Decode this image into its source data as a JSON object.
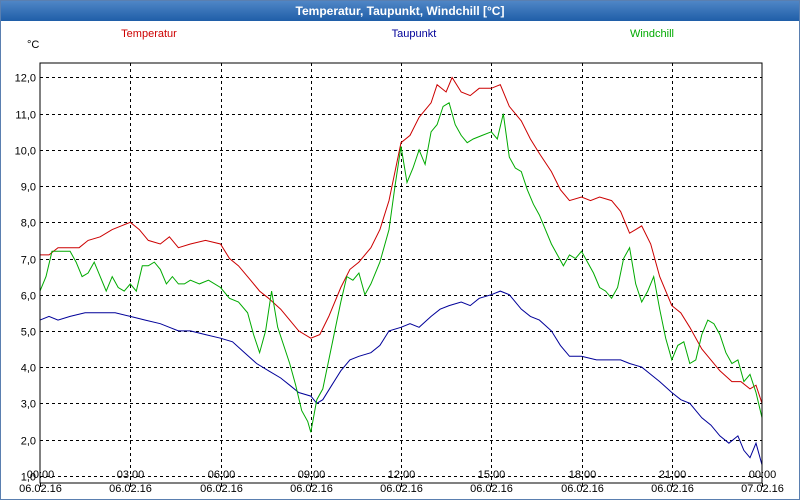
{
  "window": {
    "title": "Temperatur, Taupunkt, Windchill [°C]"
  },
  "chart_data": {
    "type": "line",
    "title": "Temperatur, Taupunkt, Windchill [°C]",
    "ylabel": "°C",
    "ylim": [
      0.8,
      12.4
    ],
    "yticks": [
      1,
      2,
      3,
      4,
      5,
      6,
      7,
      8,
      9,
      10,
      11,
      12
    ],
    "ytick_labels": [
      "1,0",
      "2,0",
      "3,0",
      "4,0",
      "5,0",
      "6,0",
      "7,0",
      "8,0",
      "9,0",
      "10,0",
      "11,0",
      "12,0"
    ],
    "xlim": [
      0,
      24
    ],
    "xticks": [
      0,
      3,
      6,
      9,
      12,
      15,
      18,
      21,
      24
    ],
    "xtick_labels": [
      {
        "time": "00:00",
        "date": "06.02.16"
      },
      {
        "time": "03:00",
        "date": "06.02.16"
      },
      {
        "time": "06:00",
        "date": "06.02.16"
      },
      {
        "time": "09:00",
        "date": "06.02.16"
      },
      {
        "time": "12:00",
        "date": "06.02.16"
      },
      {
        "time": "15:00",
        "date": "06.02.16"
      },
      {
        "time": "18:00",
        "date": "06.02.16"
      },
      {
        "time": "21:00",
        "date": "06.02.16"
      },
      {
        "time": "00:00",
        "date": "07.02.16"
      }
    ],
    "grid": true,
    "series": [
      {
        "name": "Temperatur",
        "color": "#cc0000",
        "points": [
          [
            0,
            7.1
          ],
          [
            0.3,
            7.1
          ],
          [
            0.6,
            7.3
          ],
          [
            1,
            7.3
          ],
          [
            1.3,
            7.3
          ],
          [
            1.6,
            7.5
          ],
          [
            2,
            7.6
          ],
          [
            2.4,
            7.8
          ],
          [
            2.7,
            7.9
          ],
          [
            3,
            8.0
          ],
          [
            3.3,
            7.8
          ],
          [
            3.6,
            7.5
          ],
          [
            4,
            7.4
          ],
          [
            4.3,
            7.6
          ],
          [
            4.6,
            7.3
          ],
          [
            5,
            7.4
          ],
          [
            5.5,
            7.5
          ],
          [
            6,
            7.4
          ],
          [
            6.3,
            7.0
          ],
          [
            6.6,
            6.8
          ],
          [
            7,
            6.4
          ],
          [
            7.3,
            6.1
          ],
          [
            7.6,
            5.9
          ],
          [
            8,
            5.6
          ],
          [
            8.3,
            5.3
          ],
          [
            8.6,
            5.0
          ],
          [
            9,
            4.8
          ],
          [
            9.3,
            4.9
          ],
          [
            9.6,
            5.4
          ],
          [
            10,
            6.2
          ],
          [
            10.3,
            6.7
          ],
          [
            10.6,
            6.9
          ],
          [
            11,
            7.3
          ],
          [
            11.3,
            7.8
          ],
          [
            11.6,
            8.6
          ],
          [
            12,
            10.2
          ],
          [
            12.3,
            10.4
          ],
          [
            12.6,
            10.9
          ],
          [
            13,
            11.3
          ],
          [
            13.2,
            11.8
          ],
          [
            13.5,
            11.6
          ],
          [
            13.7,
            12.0
          ],
          [
            14,
            11.6
          ],
          [
            14.3,
            11.5
          ],
          [
            14.6,
            11.7
          ],
          [
            15,
            11.7
          ],
          [
            15.3,
            11.8
          ],
          [
            15.6,
            11.2
          ],
          [
            16,
            10.8
          ],
          [
            16.3,
            10.3
          ],
          [
            16.6,
            9.9
          ],
          [
            17,
            9.4
          ],
          [
            17.3,
            8.9
          ],
          [
            17.6,
            8.6
          ],
          [
            18,
            8.7
          ],
          [
            18.3,
            8.6
          ],
          [
            18.6,
            8.7
          ],
          [
            19,
            8.6
          ],
          [
            19.3,
            8.3
          ],
          [
            19.6,
            7.7
          ],
          [
            19.8,
            7.8
          ],
          [
            20,
            7.9
          ],
          [
            20.3,
            7.4
          ],
          [
            20.6,
            6.5
          ],
          [
            21,
            5.7
          ],
          [
            21.3,
            5.5
          ],
          [
            21.6,
            5.1
          ],
          [
            22,
            4.5
          ],
          [
            22.3,
            4.2
          ],
          [
            22.6,
            3.9
          ],
          [
            23,
            3.6
          ],
          [
            23.3,
            3.6
          ],
          [
            23.6,
            3.4
          ],
          [
            23.8,
            3.5
          ],
          [
            24,
            3.0
          ]
        ]
      },
      {
        "name": "Taupunkt",
        "color": "#000099",
        "points": [
          [
            0,
            5.3
          ],
          [
            0.3,
            5.4
          ],
          [
            0.6,
            5.3
          ],
          [
            1,
            5.4
          ],
          [
            1.5,
            5.5
          ],
          [
            2,
            5.5
          ],
          [
            2.5,
            5.5
          ],
          [
            3,
            5.4
          ],
          [
            3.5,
            5.3
          ],
          [
            4,
            5.2
          ],
          [
            4.3,
            5.1
          ],
          [
            4.6,
            5.0
          ],
          [
            5,
            5.0
          ],
          [
            5.5,
            4.9
          ],
          [
            6,
            4.8
          ],
          [
            6.4,
            4.7
          ],
          [
            6.8,
            4.4
          ],
          [
            7.2,
            4.1
          ],
          [
            7.6,
            3.9
          ],
          [
            8,
            3.7
          ],
          [
            8.3,
            3.5
          ],
          [
            8.6,
            3.3
          ],
          [
            9,
            3.2
          ],
          [
            9.2,
            3.0
          ],
          [
            9.4,
            3.1
          ],
          [
            9.7,
            3.5
          ],
          [
            10,
            3.9
          ],
          [
            10.3,
            4.2
          ],
          [
            10.6,
            4.3
          ],
          [
            11,
            4.4
          ],
          [
            11.3,
            4.6
          ],
          [
            11.6,
            5.0
          ],
          [
            12,
            5.1
          ],
          [
            12.3,
            5.2
          ],
          [
            12.6,
            5.1
          ],
          [
            13,
            5.4
          ],
          [
            13.3,
            5.6
          ],
          [
            13.6,
            5.7
          ],
          [
            14,
            5.8
          ],
          [
            14.3,
            5.7
          ],
          [
            14.6,
            5.9
          ],
          [
            15,
            6.0
          ],
          [
            15.3,
            6.1
          ],
          [
            15.6,
            6.0
          ],
          [
            16,
            5.6
          ],
          [
            16.3,
            5.4
          ],
          [
            16.6,
            5.3
          ],
          [
            17,
            5.0
          ],
          [
            17.3,
            4.6
          ],
          [
            17.6,
            4.3
          ],
          [
            18,
            4.3
          ],
          [
            18.5,
            4.2
          ],
          [
            19,
            4.2
          ],
          [
            19.3,
            4.2
          ],
          [
            19.6,
            4.1
          ],
          [
            20,
            4.0
          ],
          [
            20.3,
            3.8
          ],
          [
            20.6,
            3.6
          ],
          [
            21,
            3.3
          ],
          [
            21.3,
            3.1
          ],
          [
            21.6,
            3.0
          ],
          [
            22,
            2.6
          ],
          [
            22.3,
            2.4
          ],
          [
            22.6,
            2.1
          ],
          [
            22.9,
            1.9
          ],
          [
            23.2,
            2.1
          ],
          [
            23.4,
            1.7
          ],
          [
            23.6,
            1.5
          ],
          [
            23.8,
            1.9
          ],
          [
            24,
            1.3
          ]
        ]
      },
      {
        "name": "Windchill",
        "color": "#00aa00",
        "points": [
          [
            0,
            6.1
          ],
          [
            0.2,
            6.5
          ],
          [
            0.4,
            7.2
          ],
          [
            0.7,
            7.2
          ],
          [
            1,
            7.2
          ],
          [
            1.2,
            6.9
          ],
          [
            1.4,
            6.5
          ],
          [
            1.6,
            6.6
          ],
          [
            1.8,
            6.9
          ],
          [
            2,
            6.5
          ],
          [
            2.2,
            6.1
          ],
          [
            2.4,
            6.5
          ],
          [
            2.6,
            6.2
          ],
          [
            2.8,
            6.1
          ],
          [
            3,
            6.3
          ],
          [
            3.2,
            6.1
          ],
          [
            3.4,
            6.8
          ],
          [
            3.6,
            6.8
          ],
          [
            3.8,
            6.9
          ],
          [
            4,
            6.7
          ],
          [
            4.2,
            6.3
          ],
          [
            4.4,
            6.5
          ],
          [
            4.6,
            6.3
          ],
          [
            4.8,
            6.3
          ],
          [
            5,
            6.4
          ],
          [
            5.3,
            6.3
          ],
          [
            5.6,
            6.4
          ],
          [
            6,
            6.2
          ],
          [
            6.3,
            5.9
          ],
          [
            6.6,
            5.8
          ],
          [
            6.9,
            5.5
          ],
          [
            7.1,
            4.9
          ],
          [
            7.3,
            4.4
          ],
          [
            7.5,
            5.0
          ],
          [
            7.7,
            6.1
          ],
          [
            7.9,
            5.1
          ],
          [
            8.1,
            4.6
          ],
          [
            8.3,
            4.1
          ],
          [
            8.5,
            3.5
          ],
          [
            8.7,
            2.8
          ],
          [
            8.9,
            2.5
          ],
          [
            9,
            2.2
          ],
          [
            9.2,
            3.1
          ],
          [
            9.4,
            3.4
          ],
          [
            9.6,
            4.2
          ],
          [
            9.8,
            5.0
          ],
          [
            10,
            5.8
          ],
          [
            10.2,
            6.5
          ],
          [
            10.4,
            6.4
          ],
          [
            10.6,
            6.6
          ],
          [
            10.8,
            6.0
          ],
          [
            11,
            6.3
          ],
          [
            11.3,
            6.9
          ],
          [
            11.6,
            7.8
          ],
          [
            11.8,
            9.0
          ],
          [
            12,
            10.1
          ],
          [
            12.2,
            9.1
          ],
          [
            12.4,
            9.5
          ],
          [
            12.6,
            10.0
          ],
          [
            12.8,
            9.6
          ],
          [
            13,
            10.5
          ],
          [
            13.2,
            10.7
          ],
          [
            13.4,
            11.2
          ],
          [
            13.6,
            11.3
          ],
          [
            13.8,
            10.7
          ],
          [
            14,
            10.4
          ],
          [
            14.2,
            10.2
          ],
          [
            14.4,
            10.3
          ],
          [
            14.7,
            10.4
          ],
          [
            15,
            10.5
          ],
          [
            15.2,
            10.3
          ],
          [
            15.4,
            11.0
          ],
          [
            15.6,
            9.8
          ],
          [
            15.8,
            9.5
          ],
          [
            16,
            9.4
          ],
          [
            16.2,
            8.9
          ],
          [
            16.4,
            8.5
          ],
          [
            16.6,
            8.2
          ],
          [
            16.8,
            7.8
          ],
          [
            17,
            7.4
          ],
          [
            17.2,
            7.1
          ],
          [
            17.4,
            6.8
          ],
          [
            17.6,
            7.1
          ],
          [
            17.8,
            7.0
          ],
          [
            18,
            7.2
          ],
          [
            18.2,
            6.9
          ],
          [
            18.4,
            6.6
          ],
          [
            18.6,
            6.2
          ],
          [
            18.8,
            6.1
          ],
          [
            19,
            5.9
          ],
          [
            19.2,
            6.2
          ],
          [
            19.4,
            7.0
          ],
          [
            19.6,
            7.3
          ],
          [
            19.8,
            6.3
          ],
          [
            20,
            5.8
          ],
          [
            20.2,
            6.1
          ],
          [
            20.4,
            6.5
          ],
          [
            20.6,
            5.6
          ],
          [
            20.8,
            4.8
          ],
          [
            21,
            4.2
          ],
          [
            21.2,
            4.6
          ],
          [
            21.4,
            4.7
          ],
          [
            21.6,
            4.1
          ],
          [
            21.8,
            4.2
          ],
          [
            22,
            4.9
          ],
          [
            22.2,
            5.3
          ],
          [
            22.4,
            5.2
          ],
          [
            22.6,
            4.9
          ],
          [
            22.8,
            4.4
          ],
          [
            23,
            4.1
          ],
          [
            23.2,
            4.2
          ],
          [
            23.4,
            3.6
          ],
          [
            23.6,
            3.8
          ],
          [
            23.8,
            3.3
          ],
          [
            24,
            2.6
          ]
        ]
      }
    ],
    "legend": [
      "Temperatur",
      "Taupunkt",
      "Windchill"
    ]
  }
}
